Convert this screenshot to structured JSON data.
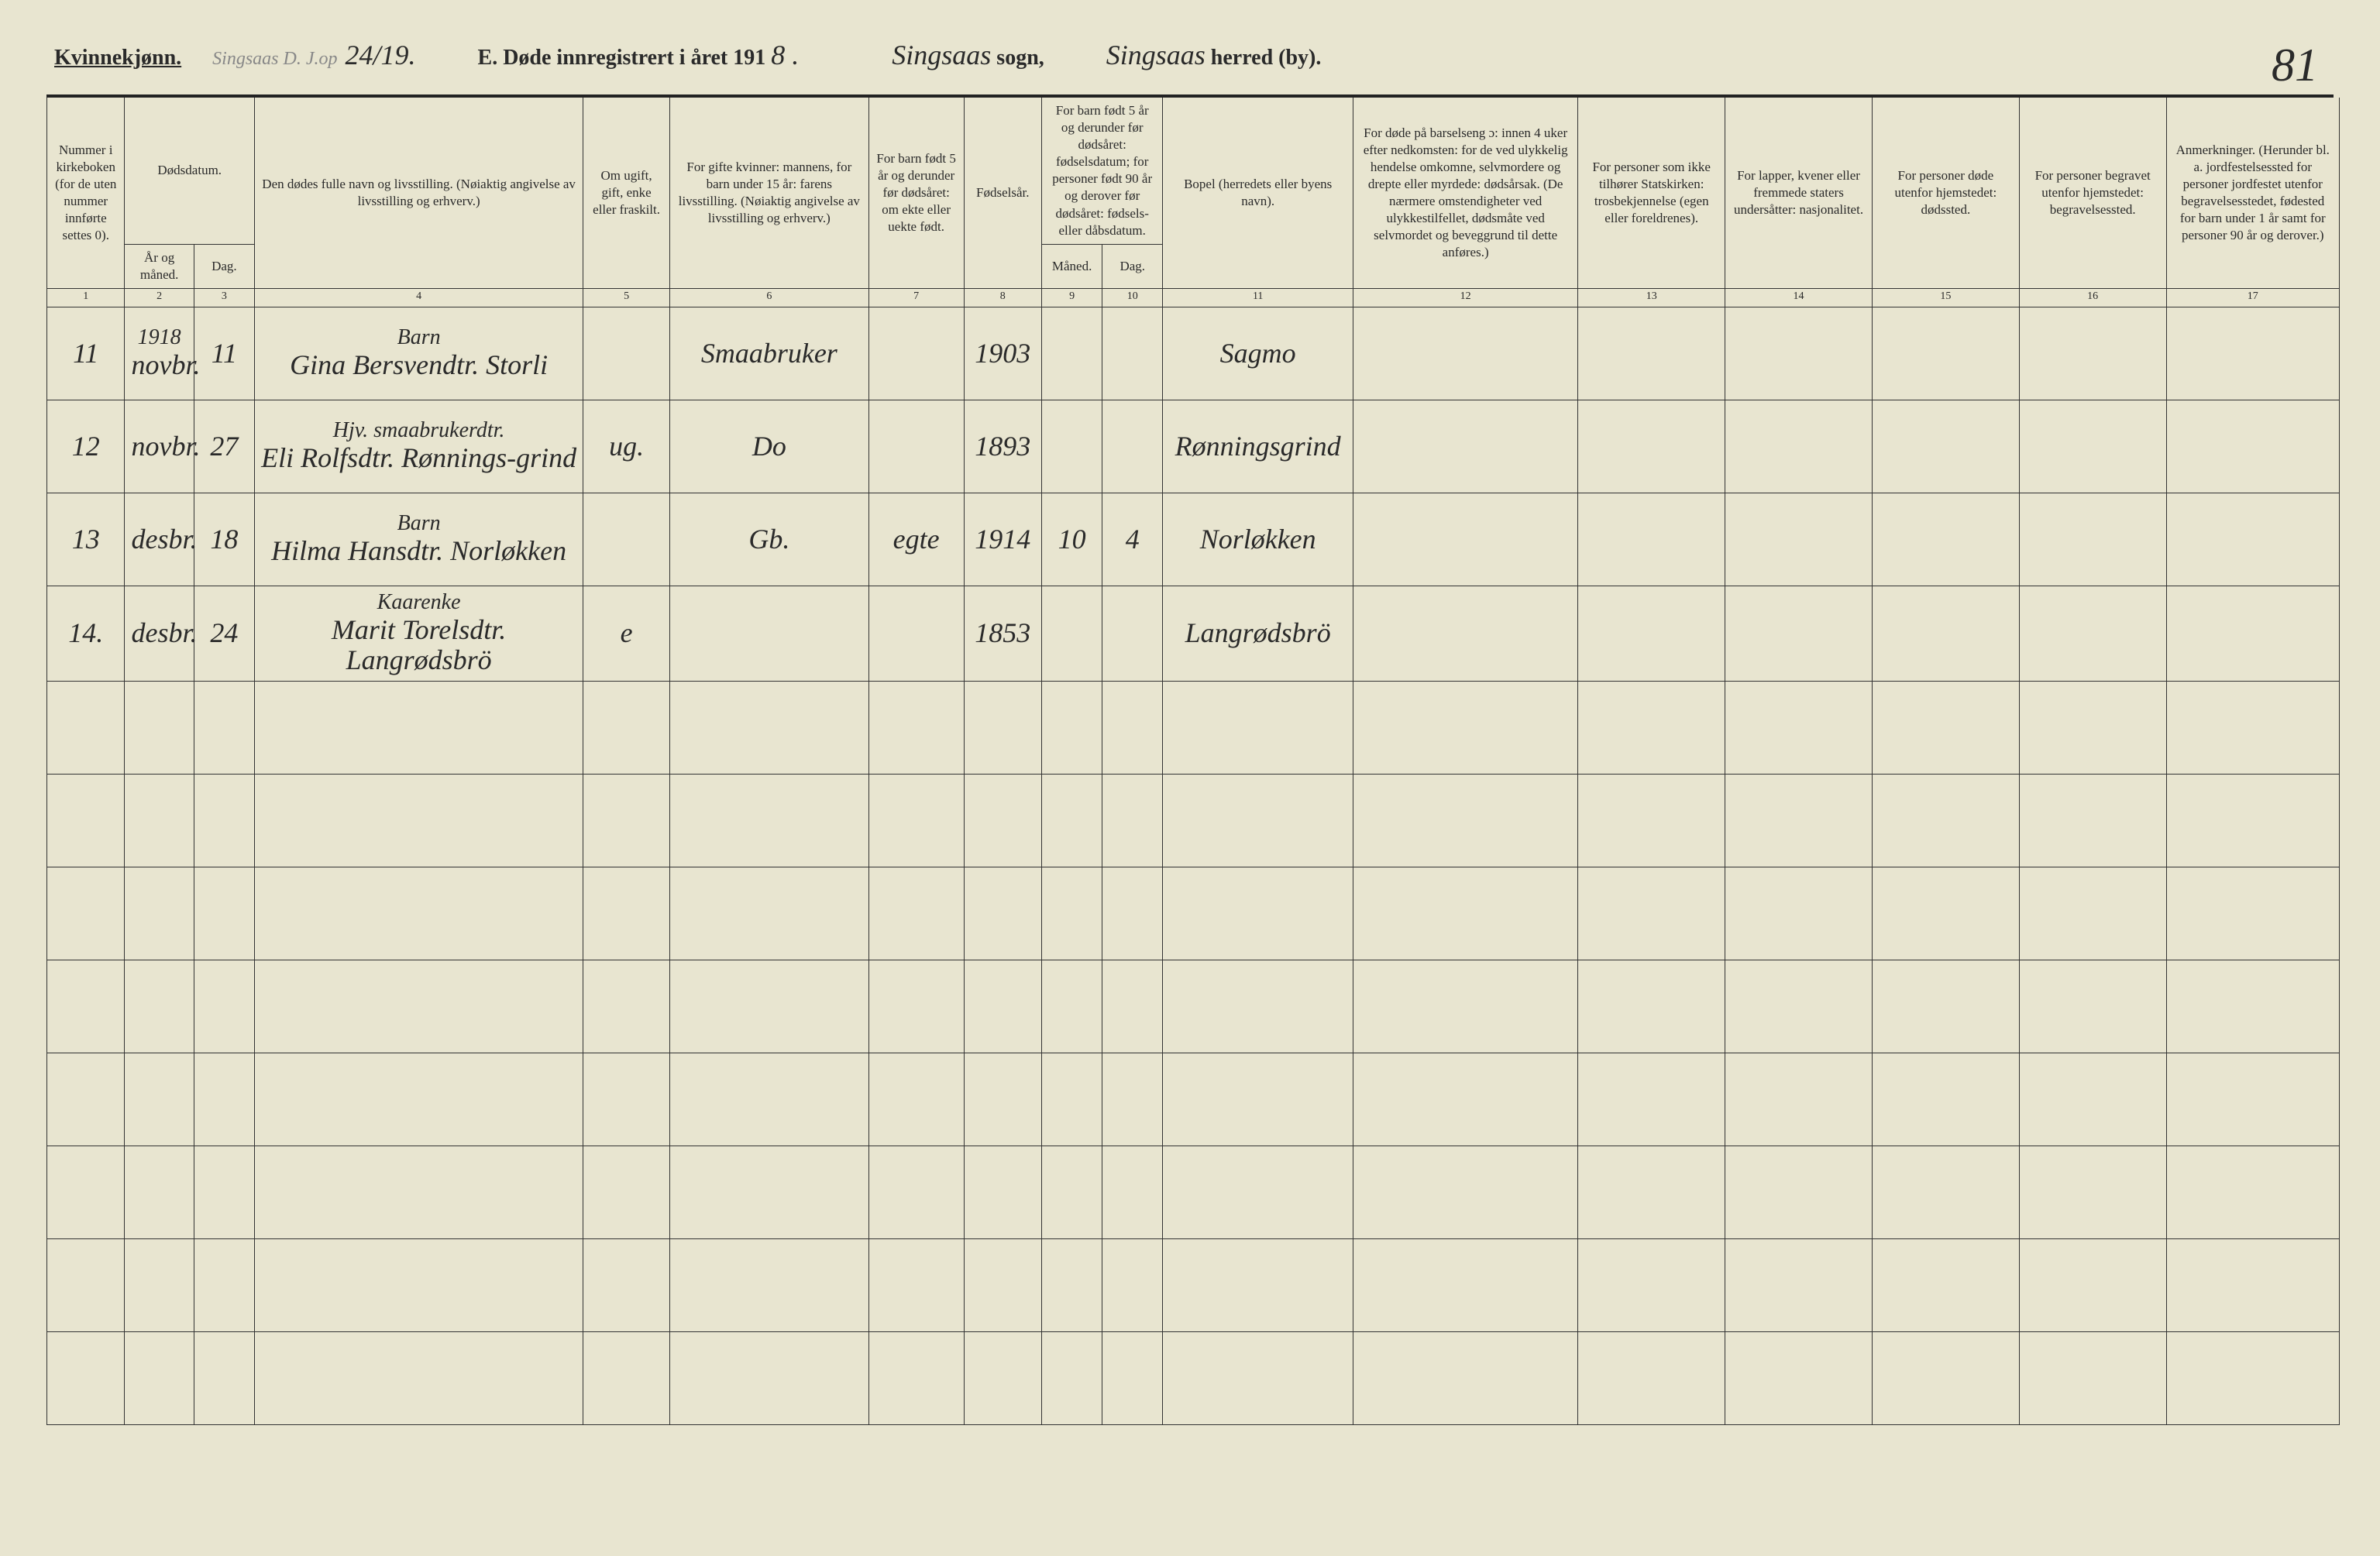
{
  "header": {
    "gender_label": "Kvinnekjønn.",
    "stamp": "Singsaas D. J.op",
    "stamp_date": "24/19.",
    "title_prefix": "E. Døde innregistrert i året 191",
    "year_suffix": "8 .",
    "sogn_hw": "Singsaas",
    "sogn_label": "sogn,",
    "herred_hw": "Singsaas",
    "herred_label": "herred (by).",
    "page_number": "81"
  },
  "columns": {
    "c1": "Nummer i kirke­boken (for de uten nummer innførte settes 0).",
    "c2a": "Dødsdatum.",
    "c2": "År og måned.",
    "c3": "Dag.",
    "c4": "Den dødes fulle navn og livsstilling. (Nøiaktig angivelse av livsstilling og erhverv.)",
    "c5": "Om ugift, gift, enke eller fraskilt.",
    "c6": "For gifte kvinner: mannens, for barn under 15 år: farens livsstilling. (Nøiaktig angivelse av livsstilling og erhverv.)",
    "c7": "For barn født 5 år og derunder før dødsåret: om ekte eller uekte født.",
    "c8": "Fødsels­år.",
    "c9a": "For barn født 5 år og derunder før dødsåret: fødselsdatum; for personer født 90 år og derover før dødsåret: fødsels- eller dåbsdatum.",
    "c9": "Måned.",
    "c10": "Dag.",
    "c11": "Bopel (herredets eller byens navn).",
    "c12": "For døde på barselseng ɔ: innen 4 uker efter nedkomsten: for de ved ulykkelig hendelse omkomne, selvmordere og drepte eller myrdede: dødsårsak. (De nærmere omstendigheter ved ulykkestilfellet, dødsmåte ved selvmordet og beveggrund til dette anføres.)",
    "c13": "For personer som ikke tilhører Statskirken: trosbekjennelse (egen eller foreldrenes).",
    "c14": "For lapper, kvener eller fremmede staters undersåtter: nasjonalitet.",
    "c15": "For personer døde utenfor hjemstedet: dødssted.",
    "c16": "For personer begravet utenfor hjemstedet: begravelsessted.",
    "c17": "Anmerkninger. (Herunder bl. a. jordfestelsessted for personer jordfestet utenfor begravelses­stedet, fødested for barn under 1 år samt for personer 90 år og derover.)"
  },
  "colnums": [
    "1",
    "2",
    "3",
    "4",
    "5",
    "6",
    "7",
    "8",
    "9",
    "10",
    "11",
    "12",
    "13",
    "14",
    "15",
    "16",
    "17"
  ],
  "rows": [
    {
      "num": "11",
      "year_month_top": "1918",
      "year_month": "novbr.",
      "day": "11",
      "name_top": "Barn",
      "name": "Gina Bersvendtr. Storli",
      "status": "",
      "parent": "Smaabruker",
      "ekte": "",
      "birth_year": "1903",
      "b_month": "",
      "b_day": "",
      "bopel": "Sagmo"
    },
    {
      "num": "12",
      "year_month": "novbr.",
      "day": "27",
      "name_top": "Hjv. smaabrukerdtr.",
      "name": "Eli Rolfsdtr. Rønnings-grind",
      "status": "ug.",
      "parent": "Do",
      "ekte": "",
      "birth_year": "1893",
      "b_month": "",
      "b_day": "",
      "bopel": "Rønningsgrind"
    },
    {
      "num": "13",
      "year_month": "desbr.",
      "day": "18",
      "name_top": "Barn",
      "name": "Hilma Hansdtr. Norløkken",
      "status": "",
      "parent": "Gb.",
      "ekte": "egte",
      "birth_year": "1914",
      "b_month": "10",
      "b_day": "4",
      "bopel": "Norløkken"
    },
    {
      "num": "14.",
      "year_month": "desbr.",
      "day": "24",
      "name_top": "Kaarenke",
      "name": "Marit Torelsdtr. Langrødsbrö",
      "status": "e",
      "parent": "",
      "ekte": "",
      "birth_year": "1853",
      "b_month": "",
      "b_day": "",
      "bopel": "Langrødsbrö"
    }
  ],
  "empty_row_count": 8
}
